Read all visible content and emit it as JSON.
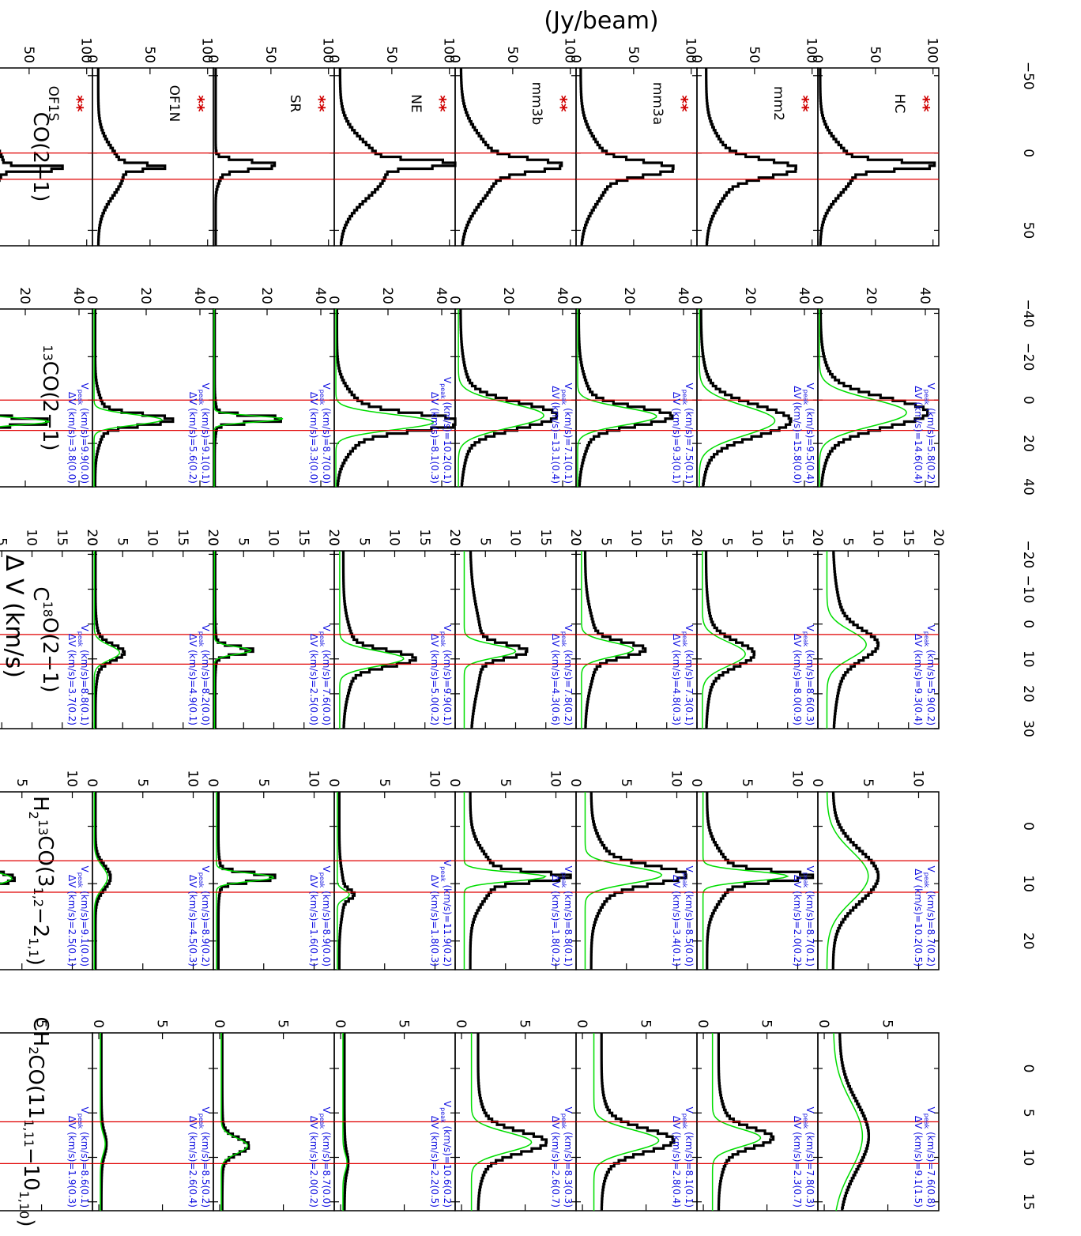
{
  "figure": {
    "ylabel": "(Jy/beam)",
    "xlabel": "Δ V (km/s)",
    "sources": [
      "OF1S",
      "OF1N",
      "SR",
      "NE",
      "mm3b",
      "mm3a",
      "mm2",
      "HC"
    ],
    "stars": "**",
    "vpeak_label": "V",
    "vpeak_sub": "peak",
    "vpeak_unit": " (km/s)=",
    "dv_label": "ΔV (km/s)=",
    "colors": {
      "spectrum": "#000000",
      "fit": "#00dd00",
      "vline": "#e00000",
      "annotation": "#1010e0",
      "stars": "#d00000"
    }
  },
  "chart_data": [
    {
      "type": "line",
      "title": "CO(2−1)",
      "title_main": "CO(2−1)",
      "x_range": [
        -55,
        60
      ],
      "x_ticks": [
        -50,
        0,
        50
      ],
      "y_range": [
        0,
        105
      ],
      "y_ticks": [
        0,
        50,
        100
      ],
      "vlines": [
        0,
        17
      ],
      "fit": false,
      "panels": [
        {
          "source": "OF1S",
          "peak": 10,
          "peak_value": 72,
          "width": 3,
          "base": 10,
          "wing_height": 18,
          "wing_width": 30,
          "wing_shift": -2
        },
        {
          "source": "OF1N",
          "peak": 9,
          "peak_value": 42,
          "width": 4,
          "base": 5,
          "wing_height": 22,
          "wing_width": 34,
          "wing_shift": 4
        },
        {
          "source": "SR",
          "peak": 8,
          "peak_value": 52,
          "width": 6,
          "base": 2,
          "wing_height": 5,
          "wing_width": 14,
          "wing_shift": 5
        },
        {
          "source": "NE",
          "peak": 7,
          "peak_value": 75,
          "width": 5,
          "base": 5,
          "wing_height": 40,
          "wing_width": 40,
          "wing_shift": 5
        },
        {
          "source": "mm3b",
          "peak": 8,
          "peak_value": 62,
          "width": 9,
          "base": 5,
          "wing_height": 32,
          "wing_width": 45,
          "wing_shift": 3
        },
        {
          "source": "mm3a",
          "peak": 10,
          "peak_value": 60,
          "width": 10,
          "base": 4,
          "wing_height": 26,
          "wing_width": 42,
          "wing_shift": 3
        },
        {
          "source": "mm2",
          "peak": 10,
          "peak_value": 62,
          "width": 12,
          "base": 8,
          "wing_height": 25,
          "wing_width": 40,
          "wing_shift": 2
        },
        {
          "source": "HC",
          "peak": 8,
          "peak_value": 75,
          "width": 6,
          "base": 2,
          "wing_height": 30,
          "wing_width": 36,
          "wing_shift": 3
        }
      ]
    },
    {
      "type": "line",
      "title": "13CO(2−1)",
      "title_sup": "13",
      "title_main": "CO(2−1)",
      "x_range": [
        -42,
        40
      ],
      "x_ticks": [
        -40,
        -20,
        0,
        20,
        40
      ],
      "y_range": [
        0,
        45
      ],
      "y_ticks": [
        0,
        20,
        40
      ],
      "vlines": [
        0,
        14
      ],
      "fit": true,
      "panels": [
        {
          "source": "OF1S",
          "vpeak": "9.9",
          "vpeak_err": "0.0",
          "dv": "3.8",
          "dv_err": "0.0",
          "peak": 9.9,
          "peak_value": 29,
          "width": 3.8,
          "base": 0.5,
          "wing_height": 1.5,
          "wing_width": 15,
          "wing_shift": 0
        },
        {
          "source": "OF1N",
          "vpeak": "9.1",
          "vpeak_err": "0.1",
          "dv": "5.6",
          "dv_err": "0.2",
          "peak": 9.1,
          "peak_value": 26,
          "width": 5.6,
          "base": 1,
          "wing_height": 4,
          "wing_width": 20,
          "wing_shift": 0
        },
        {
          "source": "SR",
          "vpeak": "8.7",
          "vpeak_err": "0.0",
          "dv": "3.3",
          "dv_err": "0.0",
          "peak": 8.7,
          "peak_value": 26,
          "width": 3.3,
          "base": 0.5,
          "wing_height": 1,
          "wing_width": 12,
          "wing_shift": 0
        },
        {
          "source": "NE",
          "vpeak": "10.2",
          "vpeak_err": "0.1",
          "dv": "8.1",
          "dv_err": "0.3",
          "peak": 10.2,
          "peak_value": 37,
          "width": 8.1,
          "base": 1,
          "wing_height": 12,
          "wing_width": 25,
          "wing_shift": 0
        },
        {
          "source": "mm3b",
          "vpeak": "7.1",
          "vpeak_err": "0.1",
          "dv": "13.1",
          "dv_err": "0.4",
          "peak": 7.1,
          "peak_value": 33,
          "width": 13.1,
          "base": 2,
          "wing_height": 5,
          "wing_width": 35,
          "wing_shift": 0
        },
        {
          "source": "mm3a",
          "vpeak": "7.5",
          "vpeak_err": "0.1",
          "dv": "9.3",
          "dv_err": "0.1",
          "peak": 7.5,
          "peak_value": 30,
          "width": 9.3,
          "base": 1,
          "wing_height": 6,
          "wing_width": 30,
          "wing_shift": 0
        },
        {
          "source": "mm2",
          "vpeak": "9.5",
          "vpeak_err": "0.4",
          "dv": "15.8",
          "dv_err": "0.0",
          "peak": 9.5,
          "peak_value": 29,
          "width": 15.8,
          "base": 1.5,
          "wing_height": 6,
          "wing_width": 35,
          "wing_shift": 0
        },
        {
          "source": "HC",
          "vpeak": "5.8",
          "vpeak_err": "0.2",
          "dv": "14.6",
          "dv_err": "0.4",
          "peak": 5.8,
          "peak_value": 33,
          "width": 14.6,
          "base": 1,
          "wing_height": 8,
          "wing_width": 32,
          "wing_shift": 0
        }
      ]
    },
    {
      "type": "line",
      "title": "C18O(2−1)",
      "title_pre": "C",
      "title_sup": "18",
      "title_main": "O(2−1)",
      "x_range": [
        -21,
        30
      ],
      "x_ticks": [
        -20,
        -10,
        0,
        10,
        20,
        30
      ],
      "y_range": [
        0,
        20
      ],
      "y_ticks": [
        0,
        5,
        10,
        15,
        20
      ],
      "vlines": [
        3,
        11.5
      ],
      "fit": true,
      "panels": [
        {
          "source": "OF1S",
          "vpeak": "8.8",
          "vpeak_err": "0.1",
          "dv": "3.7",
          "dv_err": "0.2",
          "peak": 8.8,
          "peak_value": 2.5,
          "width": 3.7,
          "base": 0.3,
          "wing_height": 0.3,
          "wing_width": 10,
          "wing_shift": 0
        },
        {
          "source": "OF1N",
          "vpeak": "8.2",
          "vpeak_err": "0.0",
          "dv": "4.9",
          "dv_err": "0.1",
          "peak": 8.2,
          "peak_value": 4.5,
          "width": 4.9,
          "base": 0.5,
          "wing_height": 0.8,
          "wing_width": 12,
          "wing_shift": 0
        },
        {
          "source": "SR",
          "vpeak": "7.6",
          "vpeak_err": "0.0",
          "dv": "2.5",
          "dv_err": "0.0",
          "peak": 7.6,
          "peak_value": 6.3,
          "width": 2.5,
          "base": 0.3,
          "wing_height": 0.3,
          "wing_width": 8,
          "wing_shift": 0
        },
        {
          "source": "NE",
          "vpeak": "9.9",
          "vpeak_err": "0.1",
          "dv": "5.0",
          "dv_err": "0.2",
          "peak": 9.9,
          "peak_value": 11.5,
          "width": 5.0,
          "base": 1.5,
          "wing_height": 2,
          "wing_width": 18,
          "wing_shift": 0
        },
        {
          "source": "mm3b",
          "vpeak": "7.8",
          "vpeak_err": "0.2",
          "dv": "4.3",
          "dv_err": "0.6",
          "peak": 7.8,
          "peak_value": 10,
          "width": 4.3,
          "base": 2.5,
          "wing_height": 2,
          "wing_width": 25,
          "wing_shift": 0
        },
        {
          "source": "mm3a",
          "vpeak": "7.3",
          "vpeak_err": "0.1",
          "dv": "4.8",
          "dv_err": "0.3",
          "peak": 7.3,
          "peak_value": 9.5,
          "width": 4.8,
          "base": 1.5,
          "wing_height": 2,
          "wing_width": 20,
          "wing_shift": 0
        },
        {
          "source": "mm2",
          "vpeak": "8.6",
          "vpeak_err": "0.3",
          "dv": "8.0",
          "dv_err": "0.9",
          "peak": 8.6,
          "peak_value": 8,
          "width": 8.0,
          "base": 1.5,
          "wing_height": 1.5,
          "wing_width": 20,
          "wing_shift": 0
        },
        {
          "source": "HC",
          "vpeak": "5.9",
          "vpeak_err": "0.2",
          "dv": "9.3",
          "dv_err": "0.4",
          "peak": 5.9,
          "peak_value": 8,
          "width": 9.3,
          "base": 2.5,
          "wing_height": 2,
          "wing_width": 25,
          "wing_shift": 0
        }
      ]
    },
    {
      "type": "line",
      "title": "H2 13CO(31,2−21,1)",
      "title_pre": "H",
      "title_sub1": "2",
      "title_sup": "13",
      "title_main": "CO(3",
      "title_sub2": "1,2",
      "title_mid": "−2",
      "title_sub3": "1,1",
      "title_end": ")",
      "x_range": [
        -6,
        25
      ],
      "x_ticks": [
        0,
        10,
        20
      ],
      "y_range": [
        0,
        12
      ],
      "y_ticks": [
        0,
        5,
        10
      ],
      "vlines": [
        6,
        11.5
      ],
      "fit": true,
      "panels": [
        {
          "source": "OF1S",
          "vpeak": "9.1",
          "vpeak_err": "0.0",
          "dv": "2.5",
          "dv_err": "0.1",
          "peak": 9.1,
          "peak_value": 4,
          "width": 2.5,
          "base": 0.3,
          "wing_height": 0.3,
          "wing_width": 6,
          "wing_shift": 0
        },
        {
          "source": "OF1N",
          "vpeak": "8.9",
          "vpeak_err": "0.2",
          "dv": "4.5",
          "dv_err": "0.3",
          "peak": 8.9,
          "peak_value": 1.5,
          "width": 4.5,
          "base": 0.3,
          "wing_height": 0.3,
          "wing_width": 6,
          "wing_shift": 0
        },
        {
          "source": "SR",
          "vpeak": "8.9",
          "vpeak_err": "0.0",
          "dv": "1.6",
          "dv_err": "0.1",
          "peak": 8.9,
          "peak_value": 6,
          "width": 1.6,
          "base": 0.5,
          "wing_height": 0.3,
          "wing_width": 5,
          "wing_shift": 0
        },
        {
          "source": "NE",
          "vpeak": "11.9",
          "vpeak_err": "0.2",
          "dv": "1.8",
          "dv_err": "0.3",
          "peak": 11.9,
          "peak_value": 1.5,
          "width": 1.8,
          "base": 0.5,
          "wing_height": 0.5,
          "wing_width": 8,
          "wing_shift": 0
        },
        {
          "source": "mm3b",
          "vpeak": "8.8",
          "vpeak_err": "0.1",
          "dv": "1.8",
          "dv_err": "0.2",
          "peak": 8.8,
          "peak_value": 9,
          "width": 1.8,
          "base": 1.5,
          "wing_height": 2.5,
          "wing_width": 9,
          "wing_shift": 0
        },
        {
          "source": "mm3a",
          "vpeak": "8.5",
          "vpeak_err": "0.0",
          "dv": "3.4",
          "dv_err": "0.1",
          "peak": 8.5,
          "peak_value": 8.5,
          "width": 3.4,
          "base": 1.5,
          "wing_height": 2.5,
          "wing_width": 10,
          "wing_shift": 0
        },
        {
          "source": "mm2",
          "vpeak": "8.7",
          "vpeak_err": "0.1",
          "dv": "2.0",
          "dv_err": "0.2",
          "peak": 8.7,
          "peak_value": 9,
          "width": 2.0,
          "base": 1,
          "wing_height": 2.5,
          "wing_width": 9,
          "wing_shift": 0
        },
        {
          "source": "HC",
          "vpeak": "8.7",
          "vpeak_err": "0.2",
          "dv": "10.2",
          "dv_err": "0.5",
          "peak": 8.7,
          "peak_value": 5,
          "width": 10.2,
          "base": 1.5,
          "wing_height": 1,
          "wing_width": 12,
          "wing_shift": 0
        }
      ]
    },
    {
      "type": "line",
      "title": "CH2CO(111,11−101,10)",
      "title_pre": "CH",
      "title_sub1": "2",
      "title_main": "CO(11",
      "title_sub2": "1,11",
      "title_mid": "−10",
      "title_sub3": "1,10",
      "title_end": ")",
      "x_range": [
        -4,
        16
      ],
      "x_ticks": [
        0,
        5,
        10,
        15
      ],
      "y_range": [
        -0.5,
        9
      ],
      "y_ticks": [
        0,
        5
      ],
      "vlines": [
        6,
        10.7
      ],
      "fit": true,
      "panels": [
        {
          "source": "OF1S",
          "vpeak": "8.6",
          "vpeak_err": "0.1",
          "dv": "1.9",
          "dv_err": "0.3",
          "peak": 8.6,
          "peak_value": 1.2,
          "width": 1.9,
          "base": 0.2,
          "wing_height": 0.1,
          "wing_width": 5,
          "wing_shift": 0
        },
        {
          "source": "OF1N",
          "vpeak": "8.5",
          "vpeak_err": "0.2",
          "dv": "2.6",
          "dv_err": "0.4",
          "peak": 8.5,
          "peak_value": 0.5,
          "width": 2.6,
          "base": 0.2,
          "wing_height": 0.1,
          "wing_width": 5,
          "wing_shift": 0
        },
        {
          "source": "SR",
          "vpeak": "8.7",
          "vpeak_err": "0.0",
          "dv": "2.0",
          "dv_err": "0.2",
          "peak": 8.7,
          "peak_value": 2.2,
          "width": 2.0,
          "base": 0.2,
          "wing_height": 0.1,
          "wing_width": 5,
          "wing_shift": 0
        },
        {
          "source": "NE",
          "vpeak": "10.6",
          "vpeak_err": "0.2",
          "dv": "2.2",
          "dv_err": "0.5",
          "peak": 10.6,
          "peak_value": 0.5,
          "width": 2.2,
          "base": 0.3,
          "wing_height": 0.1,
          "wing_width": 5,
          "wing_shift": 0
        },
        {
          "source": "mm3b",
          "vpeak": "8.3",
          "vpeak_err": "0.3",
          "dv": "2.6",
          "dv_err": "0.7",
          "peak": 8.3,
          "peak_value": 5.5,
          "width": 2.6,
          "base": 1.3,
          "wing_height": 1.2,
          "wing_width": 6,
          "wing_shift": 0
        },
        {
          "source": "mm3a",
          "vpeak": "8.1",
          "vpeak_err": "0.1",
          "dv": "2.8",
          "dv_err": "0.4",
          "peak": 8.1,
          "peak_value": 6,
          "width": 2.8,
          "base": 1.5,
          "wing_height": 1.2,
          "wing_width": 6,
          "wing_shift": 0
        },
        {
          "source": "mm2",
          "vpeak": "7.8",
          "vpeak_err": "0.3",
          "dv": "2.3",
          "dv_err": "0.7",
          "peak": 7.8,
          "peak_value": 4.5,
          "width": 2.3,
          "base": 1.2,
          "wing_height": 1,
          "wing_width": 6,
          "wing_shift": 0
        },
        {
          "source": "HC",
          "vpeak": "7.6",
          "vpeak_err": "0.8",
          "dv": "9.1",
          "dv_err": "1.5",
          "peak": 7.6,
          "peak_value": 3,
          "width": 9.1,
          "base": 1.2,
          "wing_height": 0.5,
          "wing_width": 8,
          "wing_shift": 0
        }
      ]
    }
  ]
}
